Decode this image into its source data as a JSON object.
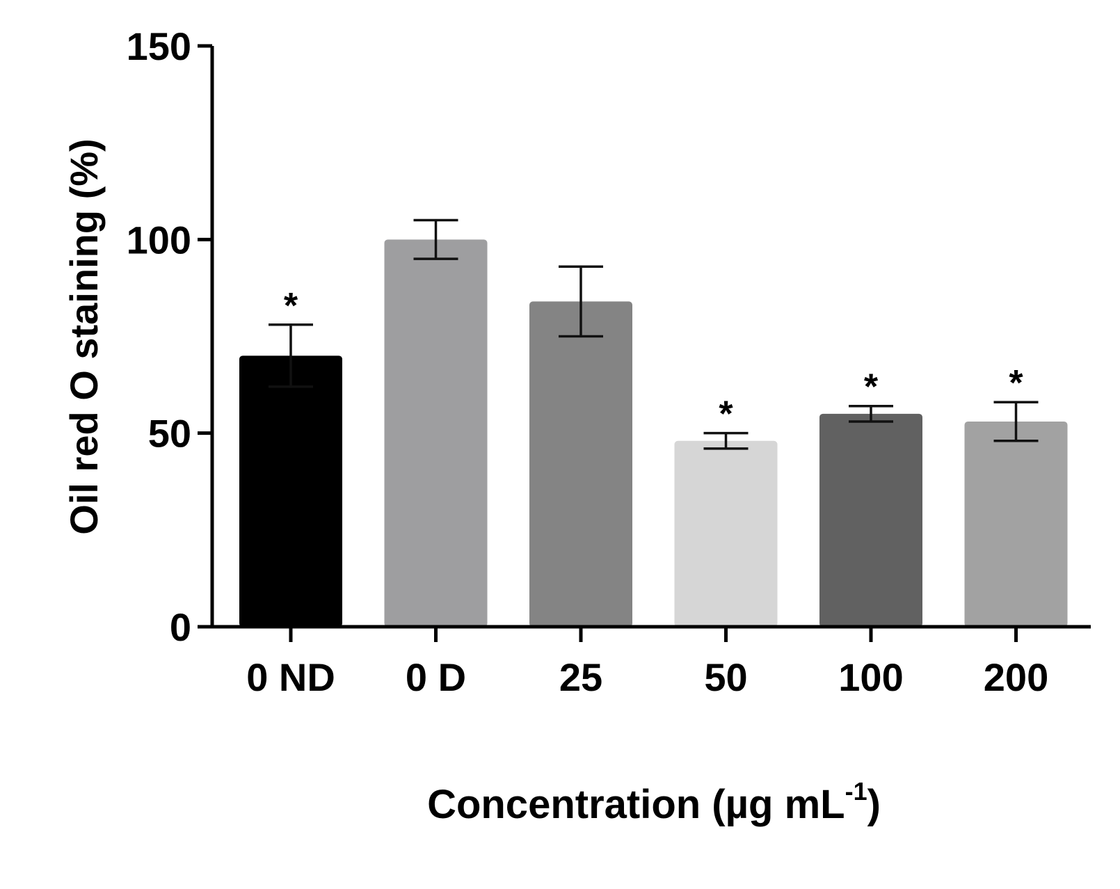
{
  "chart_data": {
    "type": "bar",
    "title": "",
    "xlabel": "Concentration (µg mL",
    "xlabel_superscript": "-1",
    "xlabel_close": ")",
    "ylabel": "Oil red O staining (%)",
    "ylim": [
      0,
      150
    ],
    "yticks": [
      "0",
      "50",
      "100",
      "150"
    ],
    "categories": [
      "0 ND",
      "0 D",
      "25",
      "50",
      "100",
      "200"
    ],
    "values": [
      70,
      100,
      84,
      48,
      55,
      53
    ],
    "errors": [
      8,
      5,
      9,
      2,
      2,
      5
    ],
    "significance": [
      "*",
      "",
      "",
      "*",
      "*",
      "*"
    ],
    "colors": [
      "#000000",
      "#9e9ea0",
      "#848484",
      "#d6d6d6",
      "#616161",
      "#a2a2a2"
    ],
    "grid": false,
    "legend": "none"
  }
}
